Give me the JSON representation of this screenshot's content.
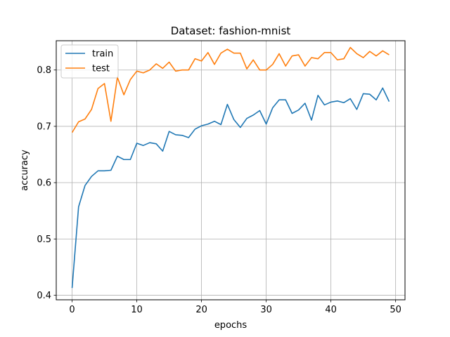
{
  "chart_data": {
    "type": "line",
    "title": "Dataset: fashion-mnist",
    "xlabel": "epochs",
    "ylabel": "accuracy",
    "xlim": [
      -2.45,
      51.45
    ],
    "ylim": [
      0.392,
      0.852
    ],
    "xticks": [
      0,
      10,
      20,
      30,
      40,
      50
    ],
    "yticks": [
      0.4,
      0.5,
      0.6,
      0.7,
      0.8
    ],
    "grid": true,
    "legend_position": "top-left",
    "x": [
      0,
      1,
      2,
      3,
      4,
      5,
      6,
      7,
      8,
      9,
      10,
      11,
      12,
      13,
      14,
      15,
      16,
      17,
      18,
      19,
      20,
      21,
      22,
      23,
      24,
      25,
      26,
      27,
      28,
      29,
      30,
      31,
      32,
      33,
      34,
      35,
      36,
      37,
      38,
      39,
      40,
      41,
      42,
      43,
      44,
      45,
      46,
      47,
      48,
      49
    ],
    "series": [
      {
        "name": "train",
        "color": "#1f77b4",
        "values": [
          0.413,
          0.557,
          0.595,
          0.611,
          0.621,
          0.621,
          0.622,
          0.647,
          0.641,
          0.641,
          0.67,
          0.666,
          0.671,
          0.669,
          0.656,
          0.691,
          0.685,
          0.684,
          0.68,
          0.695,
          0.701,
          0.704,
          0.709,
          0.703,
          0.739,
          0.712,
          0.698,
          0.714,
          0.72,
          0.728,
          0.704,
          0.733,
          0.747,
          0.747,
          0.723,
          0.729,
          0.741,
          0.711,
          0.755,
          0.738,
          0.743,
          0.745,
          0.742,
          0.749,
          0.73,
          0.758,
          0.757,
          0.747,
          0.768,
          0.744
        ]
      },
      {
        "name": "test",
        "color": "#ff7f0e",
        "values": [
          0.689,
          0.708,
          0.713,
          0.73,
          0.767,
          0.776,
          0.709,
          0.787,
          0.756,
          0.783,
          0.798,
          0.795,
          0.8,
          0.811,
          0.803,
          0.814,
          0.798,
          0.8,
          0.8,
          0.82,
          0.816,
          0.831,
          0.81,
          0.83,
          0.837,
          0.83,
          0.83,
          0.802,
          0.818,
          0.8,
          0.8,
          0.81,
          0.829,
          0.807,
          0.825,
          0.827,
          0.807,
          0.822,
          0.82,
          0.831,
          0.831,
          0.818,
          0.82,
          0.84,
          0.829,
          0.822,
          0.833,
          0.825,
          0.834,
          0.827
        ]
      }
    ]
  }
}
